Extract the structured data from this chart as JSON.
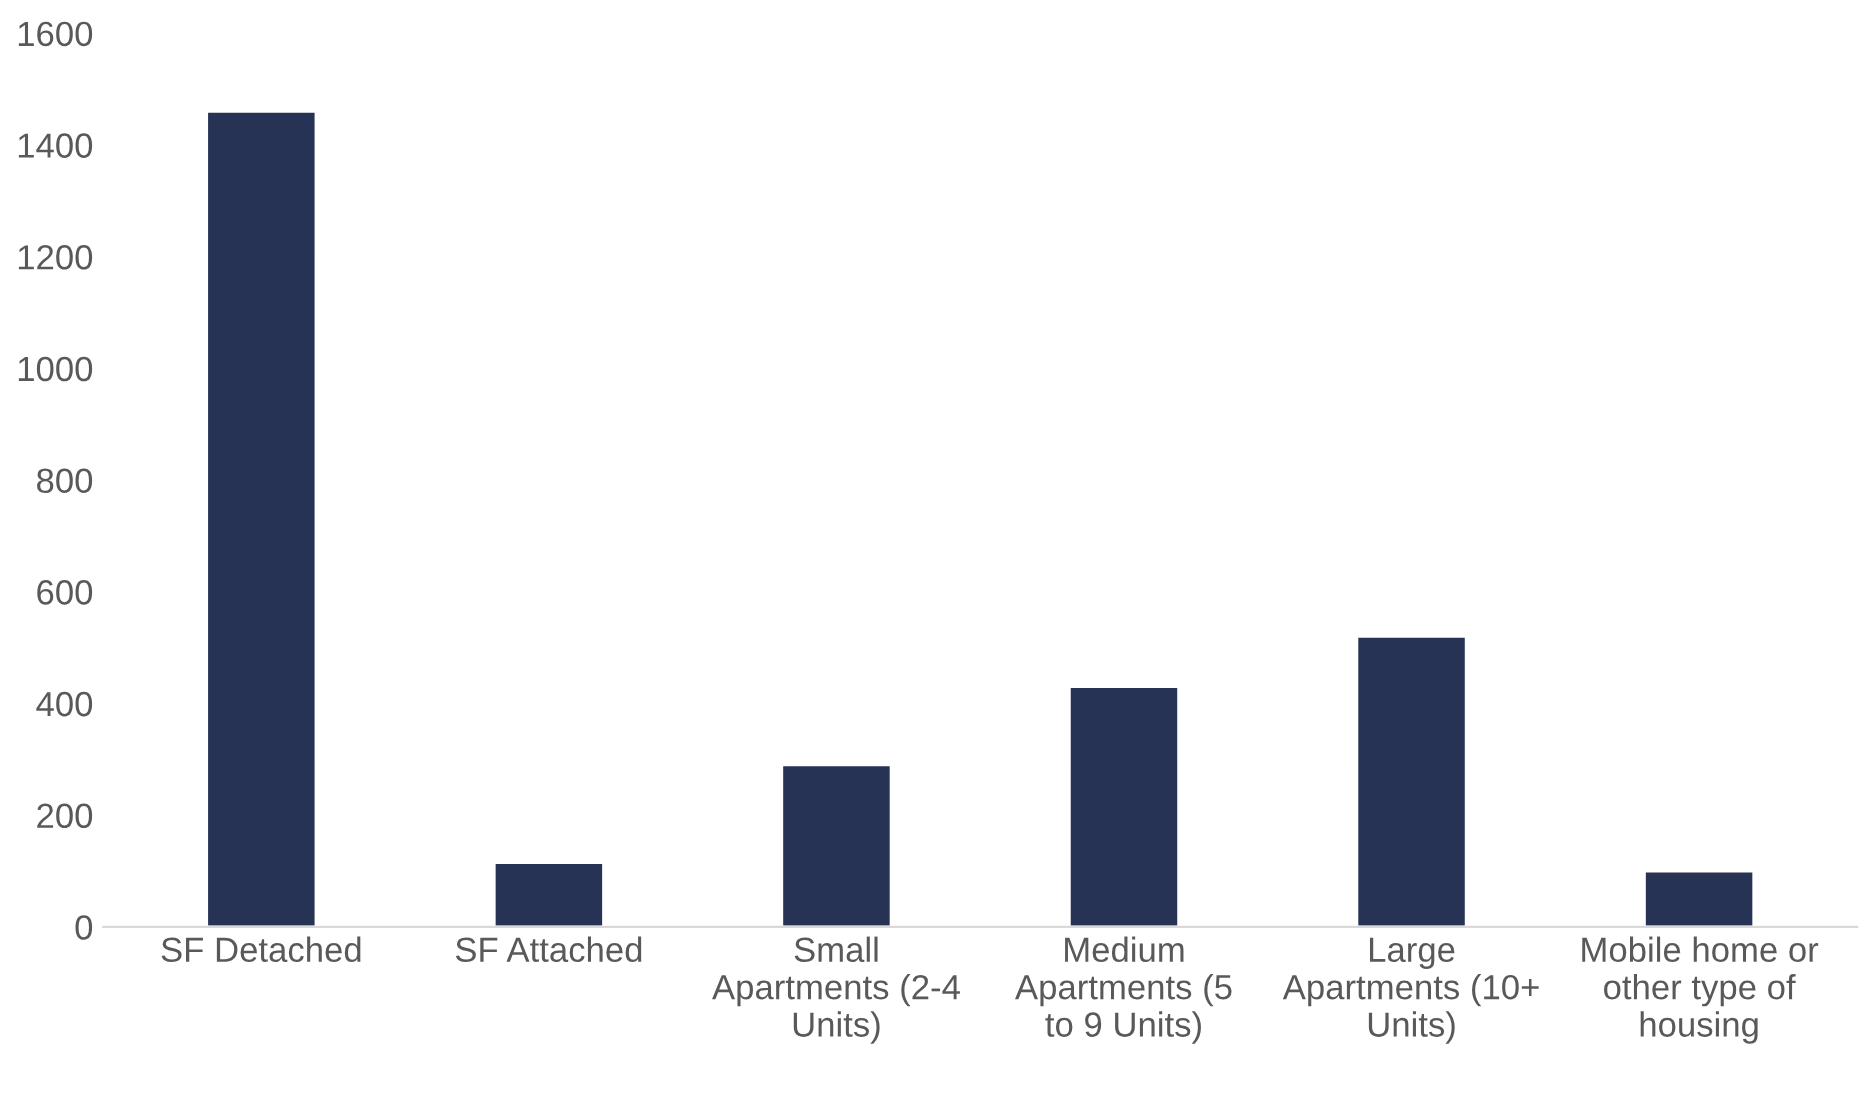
{
  "chart_data": {
    "type": "bar",
    "categories": [
      "SF Detached",
      "SF Attached",
      "Small Apartments (2-4 Units)",
      "Medium Apartments (5 to 9 Units)",
      "Large Apartments (10+ Units)",
      "Mobile home or other type of housing"
    ],
    "values": [
      1460,
      115,
      290,
      430,
      520,
      100
    ],
    "color": "#263354",
    "ylim": [
      0,
      1600
    ],
    "yticks": [
      0,
      200,
      400,
      600,
      800,
      1000,
      1200,
      1400,
      1600
    ],
    "grid": false
  }
}
